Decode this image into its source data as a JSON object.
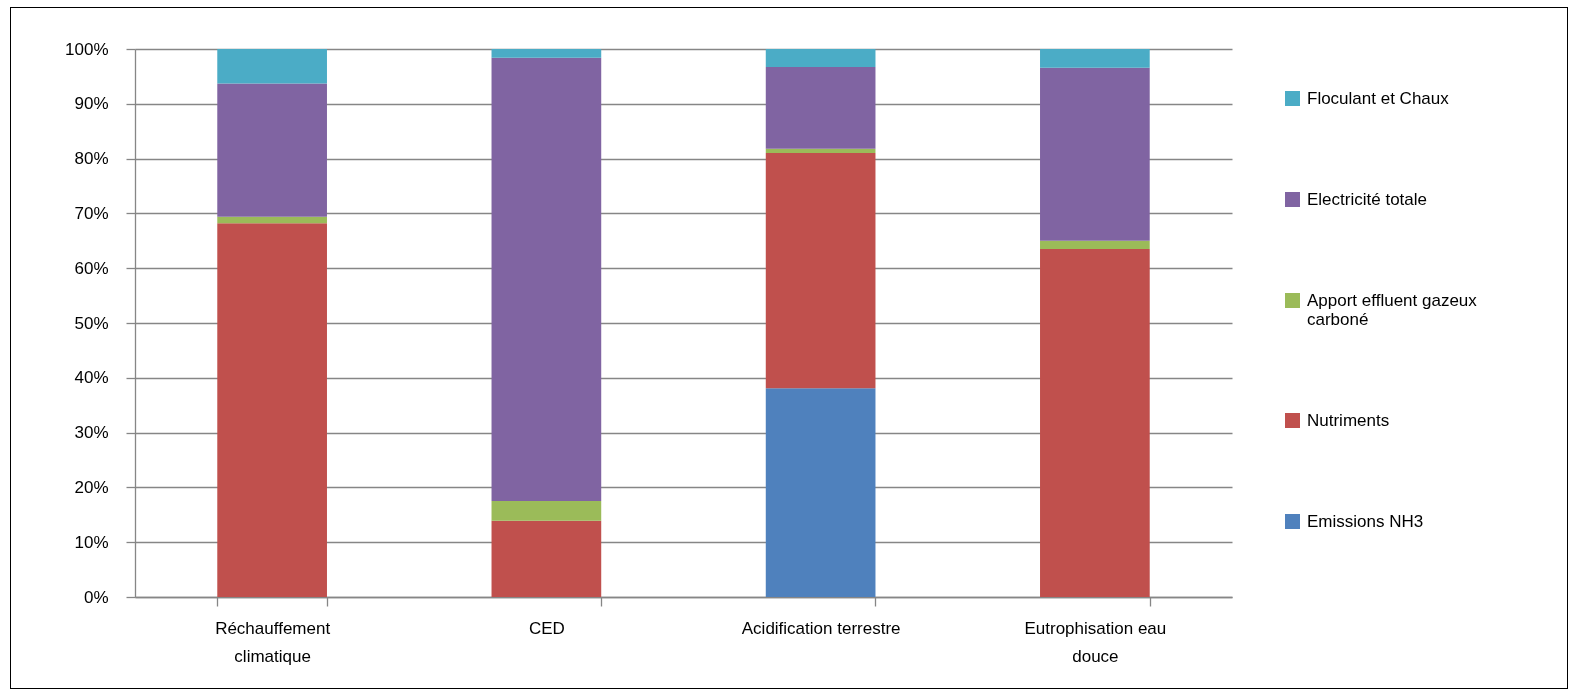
{
  "chart_data": {
    "type": "bar",
    "stacked": true,
    "categories": [
      "Réchauffement climatique",
      "CED",
      "Acidification terrestre",
      "Eutrophisation eau douce"
    ],
    "series": [
      {
        "name": "Emissions NH3",
        "color": "#4f81bd",
        "values": [
          0,
          0,
          38.1,
          0
        ]
      },
      {
        "name": "Nutriments",
        "color": "#c0504d",
        "values": [
          68.2,
          13.9,
          42.9,
          63.5
        ]
      },
      {
        "name": "Apport effluent gazeux carboné",
        "color": "#9bbb59",
        "values": [
          1.2,
          3.6,
          0.8,
          1.5
        ]
      },
      {
        "name": "Electricité totale",
        "color": "#8064a2",
        "values": [
          24.3,
          80.9,
          14.9,
          31.6
        ]
      },
      {
        "name": "Floculant et Chaux",
        "color": "#4bacc6",
        "values": [
          6.3,
          1.6,
          3.3,
          3.4
        ]
      }
    ],
    "ylim": [
      0,
      100
    ],
    "yticks": [
      {
        "value": 0,
        "label": "0%"
      },
      {
        "value": 10,
        "label": "10%"
      },
      {
        "value": 20,
        "label": "20%"
      },
      {
        "value": 30,
        "label": "30%"
      },
      {
        "value": 40,
        "label": "40%"
      },
      {
        "value": 50,
        "label": "50%"
      },
      {
        "value": 60,
        "label": "60%"
      },
      {
        "value": 70,
        "label": "70%"
      },
      {
        "value": 80,
        "label": "80%"
      },
      {
        "value": 90,
        "label": "90%"
      },
      {
        "value": 100,
        "label": "100%"
      }
    ],
    "grid": "y",
    "legend": "right"
  }
}
